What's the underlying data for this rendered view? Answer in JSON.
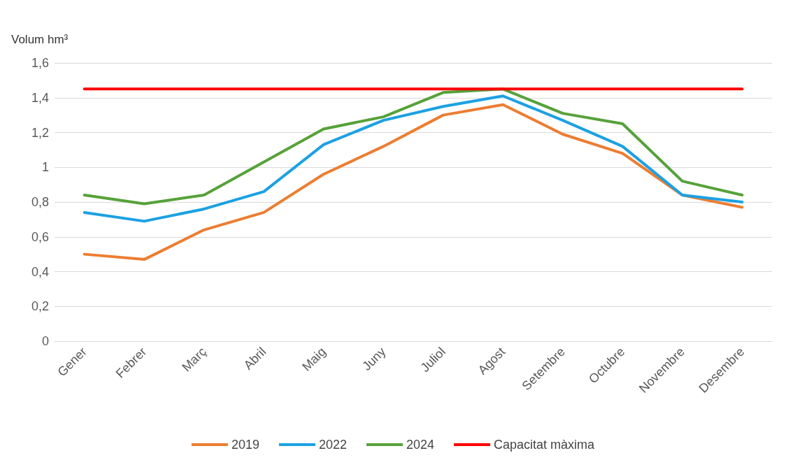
{
  "chart_data": {
    "type": "line",
    "ylabel": "Volum hm³",
    "categories": [
      "Gener",
      "Febrer",
      "Març",
      "Abril",
      "Maig",
      "Juny",
      "Juliol",
      "Agost",
      "Setembre",
      "Octubre",
      "Novembre",
      "Desembre"
    ],
    "series": [
      {
        "name": "2019",
        "color": "#ed7d31",
        "values": [
          0.5,
          0.47,
          0.64,
          0.74,
          0.96,
          1.12,
          1.3,
          1.36,
          1.19,
          1.08,
          0.84,
          0.77
        ]
      },
      {
        "name": "2022",
        "color": "#1ba1e2",
        "values": [
          0.74,
          0.69,
          0.76,
          0.86,
          1.13,
          1.27,
          1.35,
          1.41,
          1.27,
          1.12,
          0.84,
          0.8
        ]
      },
      {
        "name": "2024",
        "color": "#56a23a",
        "values": [
          0.84,
          0.79,
          0.84,
          1.03,
          1.22,
          1.29,
          1.43,
          1.45,
          1.31,
          1.25,
          0.92,
          0.84
        ]
      },
      {
        "name": "Capacitat màxima",
        "color": "#ff0000",
        "values": [
          1.45,
          1.45,
          1.45,
          1.45,
          1.45,
          1.45,
          1.45,
          1.45,
          1.45,
          1.45,
          1.45,
          1.45
        ]
      }
    ],
    "ylim": [
      0,
      1.6
    ],
    "yticks": [
      0,
      {
        "value": 0.2,
        "label": "0,2"
      },
      {
        "value": 0.4,
        "label": "0,4"
      },
      {
        "value": 0.6,
        "label": "0,6"
      },
      {
        "value": 0.8,
        "label": "0,8"
      },
      1,
      {
        "value": 1.2,
        "label": "1,2"
      },
      {
        "value": 1.4,
        "label": "1,4"
      },
      {
        "value": 1.6,
        "label": "1,6"
      }
    ],
    "grid": "y",
    "legend": "bottom",
    "marker": "none",
    "line_style": "solid"
  }
}
